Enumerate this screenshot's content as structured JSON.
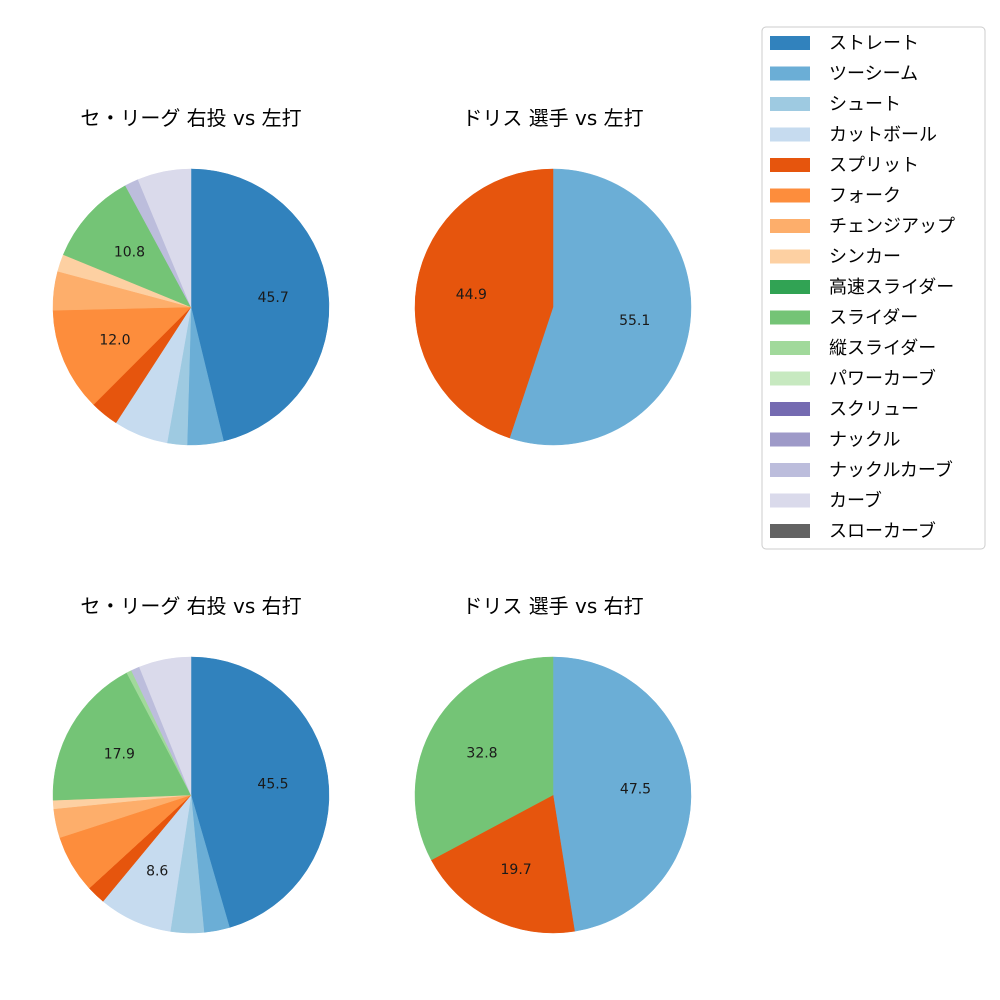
{
  "legend": {
    "location": "top-right",
    "items": [
      {
        "label": "ストレート",
        "color": "#3182bd"
      },
      {
        "label": "ツーシーム",
        "color": "#6baed6"
      },
      {
        "label": "シュート",
        "color": "#9ecae1"
      },
      {
        "label": "カットボール",
        "color": "#c6dbef"
      },
      {
        "label": "スプリット",
        "color": "#e6550d"
      },
      {
        "label": "フォーク",
        "color": "#fd8d3c"
      },
      {
        "label": "チェンジアップ",
        "color": "#fdae6b"
      },
      {
        "label": "シンカー",
        "color": "#fdd0a2"
      },
      {
        "label": "高速スライダー",
        "color": "#31a354"
      },
      {
        "label": "スライダー",
        "color": "#74c476"
      },
      {
        "label": "縦スライダー",
        "color": "#a1d99b"
      },
      {
        "label": "パワーカーブ",
        "color": "#c7e9c0"
      },
      {
        "label": "スクリュー",
        "color": "#756bb1"
      },
      {
        "label": "ナックル",
        "color": "#9e9ac8"
      },
      {
        "label": "ナックルカーブ",
        "color": "#bcbddc"
      },
      {
        "label": "カーブ",
        "color": "#dadaeb"
      },
      {
        "label": "スローカーブ",
        "color": "#636363"
      }
    ]
  },
  "chart_data": [
    {
      "type": "pie",
      "title": "セ・リーグ 右投 vs 左打",
      "start_angle_deg": 90,
      "direction": "clockwise",
      "label_threshold": 8,
      "slices": [
        {
          "label": "ストレート",
          "value": 45.7
        },
        {
          "label": "ツーシーム",
          "value": 4.2
        },
        {
          "label": "シュート",
          "value": 2.3
        },
        {
          "label": "カットボール",
          "value": 6.3
        },
        {
          "label": "スプリット",
          "value": 3.3
        },
        {
          "label": "フォーク",
          "value": 12.0
        },
        {
          "label": "チェンジアップ",
          "value": 4.5
        },
        {
          "label": "シンカー",
          "value": 2.0
        },
        {
          "label": "スライダー",
          "value": 10.8
        },
        {
          "label": "ナックルカーブ",
          "value": 1.6
        },
        {
          "label": "カーブ",
          "value": 6.2
        }
      ]
    },
    {
      "type": "pie",
      "title": "ドリス 選手 vs 左打",
      "start_angle_deg": 90,
      "direction": "clockwise",
      "label_threshold": 8,
      "slices": [
        {
          "label": "ツーシーム",
          "value": 55.1
        },
        {
          "label": "スプリット",
          "value": 44.9
        }
      ]
    },
    {
      "type": "pie",
      "title": "セ・リーグ 右投 vs 右打",
      "start_angle_deg": 90,
      "direction": "clockwise",
      "label_threshold": 8,
      "slices": [
        {
          "label": "ストレート",
          "value": 45.5
        },
        {
          "label": "ツーシーム",
          "value": 3.0
        },
        {
          "label": "シュート",
          "value": 3.9
        },
        {
          "label": "カットボール",
          "value": 8.6
        },
        {
          "label": "スプリット",
          "value": 2.2
        },
        {
          "label": "フォーク",
          "value": 6.8
        },
        {
          "label": "チェンジアップ",
          "value": 3.4
        },
        {
          "label": "シンカー",
          "value": 1.0
        },
        {
          "label": "スライダー",
          "value": 17.9
        },
        {
          "label": "縦スライダー",
          "value": 0.6
        },
        {
          "label": "ナックルカーブ",
          "value": 1.0
        },
        {
          "label": "カーブ",
          "value": 6.1
        }
      ]
    },
    {
      "type": "pie",
      "title": "ドリス 選手 vs 右打",
      "start_angle_deg": 90,
      "direction": "clockwise",
      "label_threshold": 8,
      "slices": [
        {
          "label": "ツーシーム",
          "value": 47.5
        },
        {
          "label": "スプリット",
          "value": 19.7
        },
        {
          "label": "スライダー",
          "value": 32.8
        }
      ]
    }
  ]
}
